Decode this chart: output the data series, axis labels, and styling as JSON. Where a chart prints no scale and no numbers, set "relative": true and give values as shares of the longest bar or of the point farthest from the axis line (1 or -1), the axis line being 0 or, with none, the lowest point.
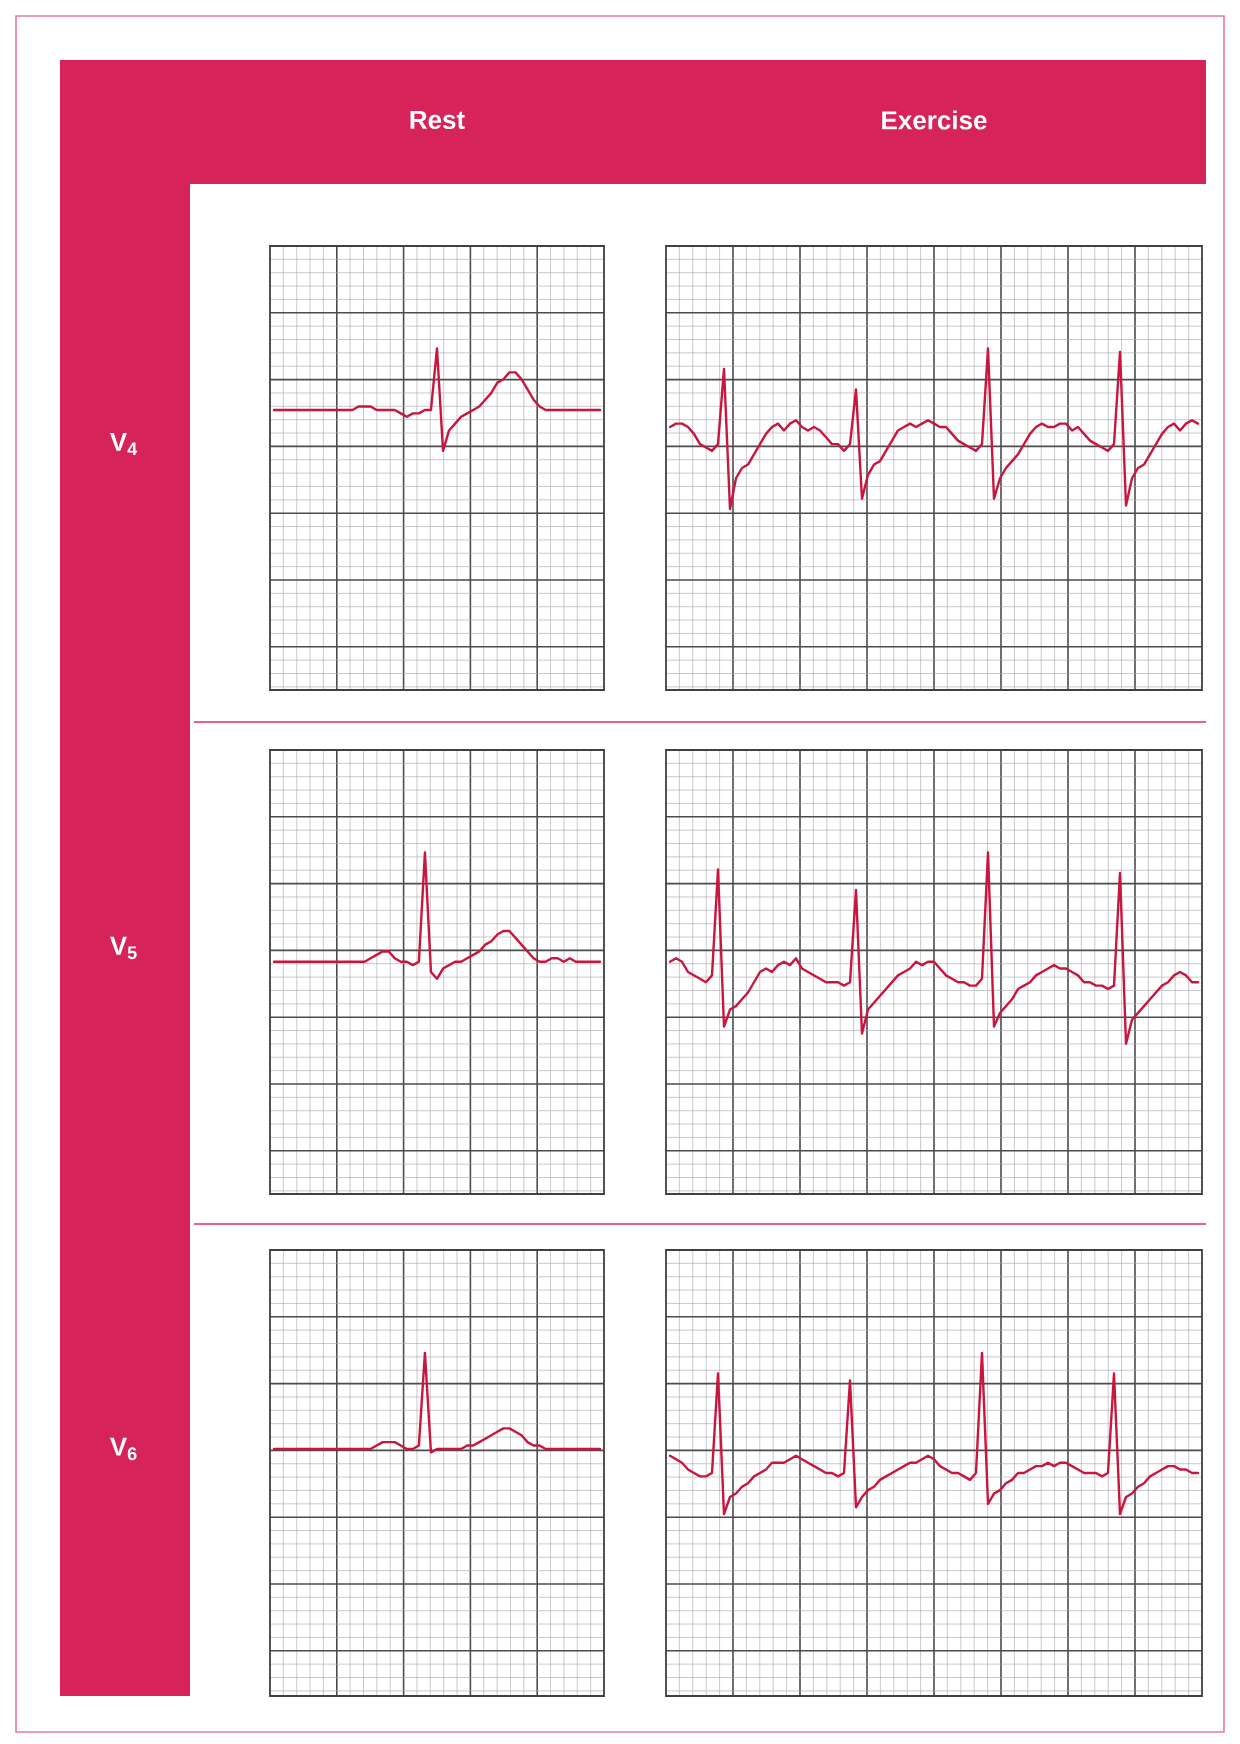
{
  "chart_data": [
    {
      "type": "line",
      "title": "Rest",
      "ylabel": "V$_{4}$",
      "relative": true,
      "grid": true,
      "color": "#c8163f",
      "categories": [
        null,
        null,
        null,
        null,
        null,
        null,
        null,
        null,
        null,
        null,
        null,
        null,
        null,
        null,
        null,
        null,
        null,
        null,
        null,
        null,
        null,
        null,
        null,
        null,
        null,
        null,
        null,
        null,
        null,
        null,
        null,
        null,
        null,
        null,
        null,
        null,
        null,
        null,
        null,
        null,
        null,
        null,
        null,
        null,
        null,
        null,
        null,
        null,
        null,
        null,
        null,
        null,
        null,
        null,
        null
      ],
      "values": [
        0.82,
        0.82,
        0.82,
        0.82,
        0.82,
        0.82,
        0.82,
        0.82,
        0.82,
        0.82,
        0.82,
        0.82,
        0.82,
        0.82,
        0.83,
        0.83,
        0.83,
        0.82,
        0.82,
        0.82,
        0.82,
        0.81,
        0.8,
        0.81,
        0.81,
        0.82,
        0.82,
        1.0,
        0.7,
        0.76,
        0.78,
        0.8,
        0.81,
        0.82,
        0.83,
        0.85,
        0.87,
        0.9,
        0.91,
        0.93,
        0.93,
        0.91,
        0.88,
        0.85,
        0.83,
        0.82,
        0.82,
        0.82,
        0.82,
        0.82,
        0.82,
        0.82,
        0.82,
        0.82,
        0.82
      ]
    },
    {
      "type": "line",
      "title": "Exercise",
      "relative": true,
      "grid": true,
      "color": "#c8163f",
      "categories": [
        null,
        null,
        null,
        null,
        null,
        null,
        null,
        null,
        null,
        null,
        null,
        null,
        null,
        null,
        null,
        null,
        null,
        null,
        null,
        null,
        null,
        null,
        null,
        null,
        null,
        null,
        null,
        null,
        null,
        null,
        null,
        null,
        null,
        null,
        null,
        null,
        null,
        null,
        null,
        null,
        null,
        null,
        null,
        null,
        null,
        null,
        null,
        null,
        null,
        null,
        null,
        null,
        null,
        null,
        null,
        null,
        null,
        null,
        null,
        null,
        null,
        null,
        null,
        null,
        null,
        null,
        null,
        null,
        null,
        null,
        null,
        null,
        null,
        null,
        null,
        null,
        null,
        null,
        null,
        null,
        null,
        null,
        null,
        null,
        null,
        null,
        null,
        null,
        null
      ],
      "values": [
        0.77,
        0.78,
        0.78,
        0.77,
        0.75,
        0.72,
        0.71,
        0.7,
        0.72,
        0.94,
        0.53,
        0.62,
        0.65,
        0.66,
        0.69,
        0.72,
        0.75,
        0.77,
        0.78,
        0.76,
        0.78,
        0.79,
        0.77,
        0.76,
        0.77,
        0.76,
        0.74,
        0.72,
        0.72,
        0.7,
        0.72,
        0.88,
        0.56,
        0.63,
        0.66,
        0.67,
        0.7,
        0.73,
        0.76,
        0.77,
        0.78,
        0.77,
        0.78,
        0.79,
        0.78,
        0.77,
        0.77,
        0.75,
        0.73,
        0.72,
        0.71,
        0.7,
        0.72,
        1.0,
        0.56,
        0.62,
        0.65,
        0.67,
        0.69,
        0.72,
        0.75,
        0.77,
        0.78,
        0.77,
        0.77,
        0.78,
        0.78,
        0.76,
        0.77,
        0.75,
        0.73,
        0.72,
        0.71,
        0.7,
        0.72,
        0.99,
        0.54,
        0.62,
        0.65,
        0.66,
        0.69,
        0.72,
        0.75,
        0.77,
        0.78,
        0.76,
        0.78,
        0.79,
        0.78
      ]
    },
    {
      "type": "line",
      "ylabel": "V$_{5}$",
      "relative": true,
      "grid": true,
      "color": "#c8163f",
      "categories": [
        null,
        null,
        null,
        null,
        null,
        null,
        null,
        null,
        null,
        null,
        null,
        null,
        null,
        null,
        null,
        null,
        null,
        null,
        null,
        null,
        null,
        null,
        null,
        null,
        null,
        null,
        null,
        null,
        null,
        null,
        null,
        null,
        null,
        null,
        null,
        null,
        null,
        null,
        null,
        null,
        null,
        null,
        null,
        null,
        null,
        null,
        null,
        null,
        null,
        null,
        null,
        null,
        null,
        null,
        null
      ],
      "values": [
        0.68,
        0.68,
        0.68,
        0.68,
        0.68,
        0.68,
        0.68,
        0.68,
        0.68,
        0.68,
        0.68,
        0.68,
        0.68,
        0.68,
        0.68,
        0.68,
        0.69,
        0.7,
        0.71,
        0.71,
        0.69,
        0.68,
        0.68,
        0.67,
        0.68,
        1.0,
        0.65,
        0.63,
        0.66,
        0.67,
        0.68,
        0.68,
        0.69,
        0.7,
        0.71,
        0.73,
        0.74,
        0.76,
        0.77,
        0.77,
        0.75,
        0.73,
        0.71,
        0.69,
        0.68,
        0.68,
        0.69,
        0.69,
        0.68,
        0.69,
        0.68,
        0.68,
        0.68,
        0.68,
        0.68
      ]
    },
    {
      "type": "line",
      "relative": true,
      "grid": true,
      "color": "#c8163f",
      "categories": [
        null,
        null,
        null,
        null,
        null,
        null,
        null,
        null,
        null,
        null,
        null,
        null,
        null,
        null,
        null,
        null,
        null,
        null,
        null,
        null,
        null,
        null,
        null,
        null,
        null,
        null,
        null,
        null,
        null,
        null,
        null,
        null,
        null,
        null,
        null,
        null,
        null,
        null,
        null,
        null,
        null,
        null,
        null,
        null,
        null,
        null,
        null,
        null,
        null,
        null,
        null,
        null,
        null,
        null,
        null,
        null,
        null,
        null,
        null,
        null,
        null,
        null,
        null,
        null,
        null,
        null,
        null,
        null,
        null,
        null,
        null,
        null,
        null,
        null,
        null,
        null,
        null,
        null,
        null,
        null,
        null,
        null,
        null,
        null,
        null,
        null,
        null,
        null,
        null
      ],
      "values": [
        0.68,
        0.69,
        0.68,
        0.65,
        0.64,
        0.63,
        0.62,
        0.64,
        0.95,
        0.49,
        0.54,
        0.55,
        0.57,
        0.59,
        0.62,
        0.65,
        0.66,
        0.65,
        0.67,
        0.68,
        0.67,
        0.69,
        0.66,
        0.65,
        0.64,
        0.63,
        0.62,
        0.62,
        0.62,
        0.61,
        0.62,
        0.89,
        0.47,
        0.54,
        0.56,
        0.58,
        0.6,
        0.62,
        0.64,
        0.65,
        0.66,
        0.68,
        0.67,
        0.68,
        0.68,
        0.66,
        0.64,
        0.63,
        0.62,
        0.62,
        0.61,
        0.61,
        0.63,
        1.0,
        0.49,
        0.53,
        0.55,
        0.57,
        0.6,
        0.61,
        0.62,
        0.64,
        0.65,
        0.66,
        0.67,
        0.66,
        0.66,
        0.65,
        0.64,
        0.62,
        0.62,
        0.61,
        0.61,
        0.6,
        0.61,
        0.94,
        0.44,
        0.51,
        0.53,
        0.55,
        0.57,
        0.59,
        0.61,
        0.62,
        0.64,
        0.65,
        0.64,
        0.62,
        0.62
      ]
    },
    {
      "type": "line",
      "ylabel": "V$_{6}$",
      "relative": true,
      "grid": true,
      "color": "#c8163f",
      "categories": [
        null,
        null,
        null,
        null,
        null,
        null,
        null,
        null,
        null,
        null,
        null,
        null,
        null,
        null,
        null,
        null,
        null,
        null,
        null,
        null,
        null,
        null,
        null,
        null,
        null,
        null,
        null,
        null,
        null,
        null,
        null,
        null,
        null,
        null,
        null,
        null,
        null,
        null,
        null,
        null,
        null,
        null,
        null,
        null,
        null,
        null,
        null,
        null,
        null,
        null,
        null,
        null,
        null,
        null,
        null
      ],
      "values": [
        0.72,
        0.72,
        0.72,
        0.72,
        0.72,
        0.72,
        0.72,
        0.72,
        0.72,
        0.72,
        0.72,
        0.72,
        0.72,
        0.72,
        0.72,
        0.72,
        0.72,
        0.73,
        0.74,
        0.74,
        0.74,
        0.73,
        0.72,
        0.72,
        0.73,
        1.0,
        0.71,
        0.72,
        0.72,
        0.72,
        0.72,
        0.72,
        0.73,
        0.73,
        0.74,
        0.75,
        0.76,
        0.77,
        0.78,
        0.78,
        0.77,
        0.76,
        0.74,
        0.73,
        0.73,
        0.72,
        0.72,
        0.72,
        0.72,
        0.72,
        0.72,
        0.72,
        0.72,
        0.72,
        0.72
      ]
    },
    {
      "type": "line",
      "relative": true,
      "grid": true,
      "color": "#c8163f",
      "categories": [
        null,
        null,
        null,
        null,
        null,
        null,
        null,
        null,
        null,
        null,
        null,
        null,
        null,
        null,
        null,
        null,
        null,
        null,
        null,
        null,
        null,
        null,
        null,
        null,
        null,
        null,
        null,
        null,
        null,
        null,
        null,
        null,
        null,
        null,
        null,
        null,
        null,
        null,
        null,
        null,
        null,
        null,
        null,
        null,
        null,
        null,
        null,
        null,
        null,
        null,
        null,
        null,
        null,
        null,
        null,
        null,
        null,
        null,
        null,
        null,
        null,
        null,
        null,
        null,
        null,
        null,
        null,
        null,
        null,
        null,
        null,
        null,
        null,
        null,
        null,
        null,
        null,
        null,
        null,
        null,
        null,
        null,
        null,
        null,
        null,
        null,
        null,
        null,
        null
      ],
      "values": [
        0.7,
        0.69,
        0.68,
        0.66,
        0.65,
        0.64,
        0.64,
        0.65,
        0.94,
        0.53,
        0.58,
        0.59,
        0.61,
        0.62,
        0.64,
        0.65,
        0.66,
        0.68,
        0.68,
        0.68,
        0.69,
        0.7,
        0.69,
        0.68,
        0.67,
        0.66,
        0.65,
        0.65,
        0.64,
        0.65,
        0.92,
        0.55,
        0.58,
        0.6,
        0.61,
        0.63,
        0.64,
        0.65,
        0.66,
        0.67,
        0.68,
        0.68,
        0.69,
        0.7,
        0.69,
        0.67,
        0.66,
        0.65,
        0.65,
        0.64,
        0.63,
        0.65,
        1.0,
        0.56,
        0.59,
        0.6,
        0.62,
        0.63,
        0.65,
        0.65,
        0.66,
        0.67,
        0.67,
        0.68,
        0.67,
        0.68,
        0.68,
        0.67,
        0.66,
        0.65,
        0.65,
        0.65,
        0.64,
        0.65,
        0.94,
        0.53,
        0.58,
        0.59,
        0.61,
        0.62,
        0.64,
        0.65,
        0.66,
        0.67,
        0.67,
        0.66,
        0.66,
        0.65,
        0.65
      ]
    }
  ]
}
